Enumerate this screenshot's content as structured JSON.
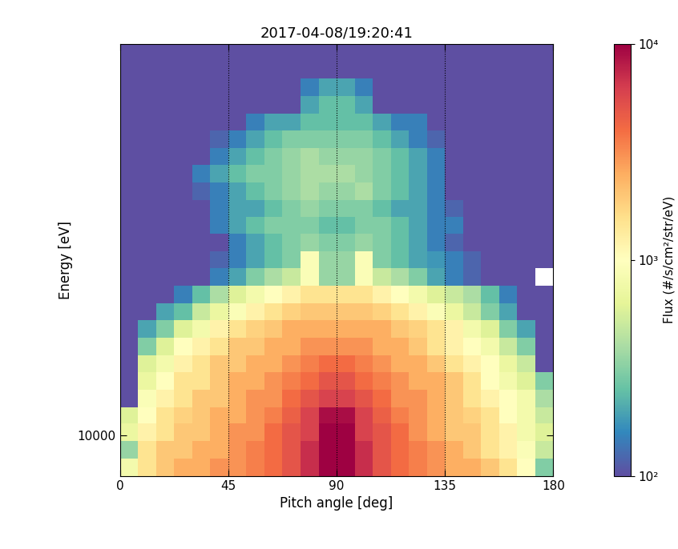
{
  "chart_data": {
    "type": "heatmap",
    "title": "2017-04-08/19:20:41",
    "x_label": "Pitch angle [deg]",
    "y_label": "Energy [eV]",
    "xlim": [
      0,
      180
    ],
    "xticks": [
      0,
      45,
      90,
      135,
      180
    ],
    "ylim": [
      8000,
      87000
    ],
    "yticks": [
      10000
    ],
    "log": "y",
    "color": "Spectral_r",
    "vlines": [
      45,
      90,
      135
    ],
    "x_edges": [
      0,
      7.5,
      15,
      22.5,
      30,
      37.5,
      45,
      52.5,
      60,
      67.5,
      75,
      82.5,
      90,
      97.5,
      105,
      112.5,
      120,
      127.5,
      135,
      142.5,
      150,
      157.5,
      165,
      172.5,
      180
    ],
    "y_edges": [
      8000,
      8800,
      9700,
      10700,
      11700,
      12900,
      14200,
      15600,
      17200,
      18900,
      20800,
      22900,
      25200,
      27700,
      30500,
      33500,
      36800,
      40500,
      44600,
      49000,
      54000,
      59300,
      65300,
      71800,
      79000,
      87000
    ],
    "cells": [
      [
        800,
        1500,
        2000,
        2500,
        2500,
        3000,
        3000,
        3500,
        4000,
        5000,
        7000,
        10000,
        10000,
        7000,
        5000,
        4000,
        3500,
        3000,
        2500,
        2500,
        2000,
        1500,
        1000,
        300
      ],
      [
        350,
        1500,
        2000,
        2000,
        2500,
        2500,
        3000,
        3500,
        4000,
        5000,
        7000,
        10000,
        10000,
        7000,
        5000,
        4000,
        3500,
        3000,
        2500,
        2000,
        1500,
        1200,
        900,
        500
      ],
      [
        700,
        1200,
        1500,
        2000,
        2000,
        2500,
        3000,
        3000,
        4000,
        5000,
        6000,
        10000,
        10000,
        6000,
        5000,
        4000,
        3000,
        2500,
        2000,
        2000,
        1500,
        1200,
        800,
        600
      ],
      [
        600,
        1000,
        1500,
        1800,
        2000,
        2500,
        2500,
        3000,
        3500,
        4500,
        6000,
        9000,
        9000,
        6000,
        4500,
        3500,
        3000,
        2500,
        2000,
        1800,
        1500,
        1000,
        800,
        500
      ],
      [
        100,
        900,
        1200,
        1500,
        2000,
        2000,
        2500,
        3000,
        3000,
        4000,
        5000,
        6000,
        6000,
        5000,
        4000,
        3000,
        3000,
        2500,
        2000,
        1500,
        1200,
        1000,
        800,
        400
      ],
      [
        100,
        700,
        1000,
        1500,
        1500,
        2000,
        2500,
        2500,
        3000,
        3500,
        4000,
        5000,
        5000,
        4000,
        3500,
        3000,
        2500,
        2500,
        2000,
        1500,
        1000,
        800,
        600,
        300
      ],
      [
        100,
        600,
        800,
        1200,
        1500,
        2000,
        2000,
        2500,
        2500,
        3000,
        3500,
        4000,
        4000,
        3500,
        3000,
        2500,
        2500,
        2000,
        1500,
        1200,
        1000,
        700,
        500,
        100
      ],
      [
        100,
        300,
        600,
        1000,
        1200,
        1500,
        2000,
        2000,
        2500,
        2500,
        3000,
        3000,
        3000,
        3000,
        2500,
        2500,
        2000,
        1500,
        1200,
        1000,
        800,
        500,
        300,
        100
      ],
      [
        100,
        200,
        300,
        600,
        800,
        1200,
        1500,
        1800,
        2000,
        2500,
        2500,
        2500,
        2500,
        2500,
        2500,
        2000,
        1800,
        1500,
        1200,
        800,
        600,
        300,
        200,
        100
      ],
      [
        100,
        100,
        200,
        250,
        500,
        700,
        900,
        1200,
        1500,
        1800,
        2000,
        2000,
        2000,
        2000,
        1800,
        1500,
        1200,
        900,
        700,
        500,
        300,
        200,
        100,
        100
      ],
      [
        100,
        100,
        100,
        150,
        250,
        400,
        600,
        800,
        1000,
        1200,
        1500,
        1500,
        1500,
        1500,
        1200,
        1000,
        800,
        600,
        500,
        400,
        250,
        150,
        100,
        100
      ],
      [
        100,
        100,
        100,
        100,
        100,
        150,
        200,
        300,
        400,
        500,
        900,
        350,
        350,
        900,
        500,
        400,
        300,
        200,
        150,
        120,
        100,
        100,
        100,
        null
      ],
      [
        100,
        100,
        100,
        100,
        100,
        120,
        150,
        200,
        250,
        300,
        900,
        350,
        350,
        900,
        300,
        250,
        200,
        180,
        150,
        120,
        100,
        100,
        100,
        100
      ],
      [
        100,
        100,
        100,
        100,
        100,
        100,
        150,
        200,
        250,
        300,
        350,
        300,
        300,
        350,
        300,
        250,
        200,
        150,
        120,
        100,
        100,
        100,
        100,
        100
      ],
      [
        100,
        100,
        100,
        100,
        100,
        150,
        200,
        250,
        300,
        300,
        300,
        250,
        250,
        300,
        300,
        250,
        200,
        150,
        150,
        100,
        100,
        100,
        100,
        100
      ],
      [
        100,
        100,
        100,
        100,
        100,
        150,
        200,
        200,
        250,
        300,
        350,
        300,
        300,
        300,
        250,
        200,
        200,
        150,
        120,
        100,
        100,
        100,
        100,
        100
      ],
      [
        100,
        100,
        100,
        100,
        120,
        150,
        200,
        250,
        300,
        350,
        400,
        350,
        350,
        400,
        300,
        250,
        200,
        150,
        100,
        100,
        100,
        100,
        100,
        100
      ],
      [
        100,
        100,
        100,
        100,
        150,
        200,
        250,
        300,
        300,
        350,
        400,
        400,
        400,
        350,
        300,
        250,
        200,
        150,
        100,
        100,
        100,
        100,
        100,
        100
      ],
      [
        100,
        100,
        100,
        100,
        100,
        150,
        200,
        250,
        300,
        350,
        400,
        350,
        350,
        350,
        300,
        250,
        200,
        150,
        100,
        100,
        100,
        100,
        100,
        100
      ],
      [
        100,
        100,
        100,
        100,
        100,
        120,
        150,
        200,
        250,
        300,
        300,
        300,
        300,
        300,
        250,
        200,
        150,
        120,
        100,
        100,
        100,
        100,
        100,
        100
      ],
      [
        100,
        100,
        100,
        100,
        100,
        100,
        100,
        150,
        200,
        200,
        250,
        250,
        250,
        250,
        200,
        150,
        150,
        100,
        100,
        100,
        100,
        100,
        100,
        100
      ],
      [
        100,
        100,
        100,
        100,
        100,
        100,
        100,
        100,
        100,
        100,
        200,
        250,
        250,
        200,
        100,
        100,
        100,
        100,
        100,
        100,
        100,
        100,
        100,
        100
      ],
      [
        100,
        100,
        100,
        100,
        100,
        100,
        100,
        100,
        100,
        100,
        150,
        200,
        200,
        150,
        100,
        100,
        100,
        100,
        100,
        100,
        100,
        100,
        100,
        100
      ],
      [
        100,
        100,
        100,
        100,
        100,
        100,
        100,
        100,
        100,
        100,
        100,
        100,
        100,
        100,
        100,
        100,
        100,
        100,
        100,
        100,
        100,
        100,
        100,
        100
      ],
      [
        100,
        100,
        100,
        100,
        100,
        100,
        100,
        100,
        100,
        100,
        100,
        100,
        100,
        100,
        100,
        100,
        100,
        100,
        100,
        100,
        100,
        100,
        100,
        100
      ]
    ],
    "colorbar_label": "Flux (#/s/cm²/str/eV)",
    "colorbar_lim": [
      100,
      10000
    ],
    "colorbar_ticks": [
      {
        "value": 100,
        "label": "10²"
      },
      {
        "value": 1000,
        "label": "10³"
      },
      {
        "value": 10000,
        "label": "10⁴"
      }
    ]
  }
}
